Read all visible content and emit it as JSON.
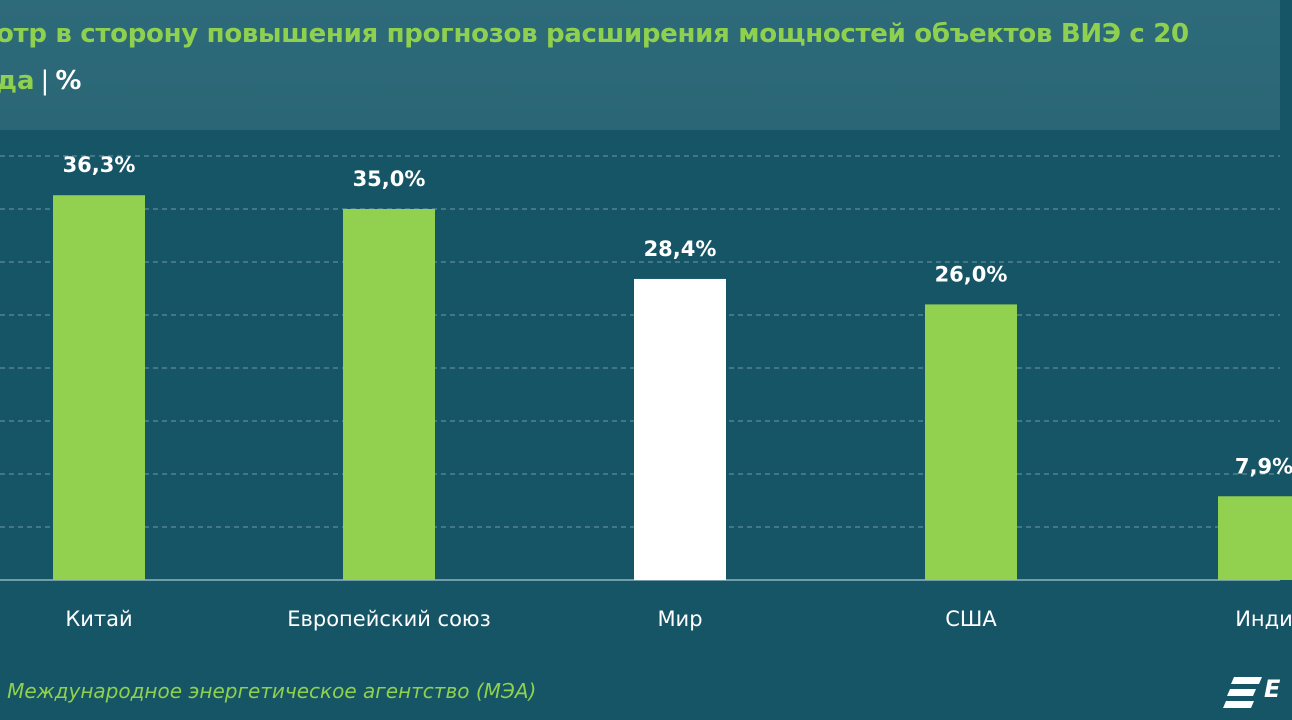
{
  "header": {
    "title": "отр в сторону повышения прогнозов расширения мощностей объектов ВИЭ с 20",
    "subtitle_part": "да",
    "separator": "|",
    "unit": "%"
  },
  "chart_data": {
    "type": "bar",
    "categories": [
      "Китай",
      "Европейский союз",
      "Мир",
      "США",
      "Инди"
    ],
    "values": [
      36.3,
      35.0,
      28.4,
      26.0,
      7.9
    ],
    "value_labels": [
      "36,3%",
      "35,0%",
      "28,4%",
      "26,0%",
      "7,9%"
    ],
    "colors": [
      "#92d050",
      "#92d050",
      "#ffffff",
      "#92d050",
      "#92d050"
    ],
    "title": "",
    "xlabel": "",
    "ylabel": "",
    "ylim": [
      0,
      40
    ],
    "grid": true,
    "legend": "none"
  },
  "footer": {
    "source": ": Международное энергетическое агентство (МЭА)",
    "logo_text": "E"
  },
  "colors": {
    "background": "#165566",
    "header_bg": "#2e6b7a",
    "accent_green": "#8fd14f",
    "bar_green": "#92d050",
    "bar_highlight": "#ffffff",
    "text": "#ffffff"
  }
}
